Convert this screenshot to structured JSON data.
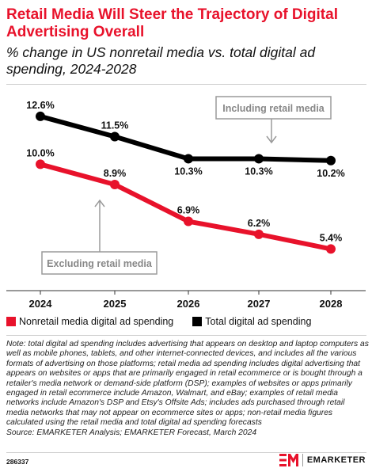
{
  "header": {
    "title": "Retail Media Will Steer the Trajectory of Digital Advertising Overall",
    "subtitle": "% change in US nonretail media vs. total digital ad spending, 2024-2028"
  },
  "chart_data": {
    "type": "line",
    "x": [
      "2024",
      "2025",
      "2026",
      "2027",
      "2028"
    ],
    "ylim": [
      4,
      13.5
    ],
    "grid": false,
    "legend_position": "bottom",
    "series": [
      {
        "name": "Total digital ad spending",
        "color": "#000000",
        "values": [
          12.6,
          11.5,
          10.3,
          10.3,
          10.2
        ],
        "labels": [
          "12.6%",
          "11.5%",
          "10.3%",
          "10.3%",
          "10.2%"
        ]
      },
      {
        "name": "Nonretail media digital ad spending",
        "color": "#e8122b",
        "values": [
          10.0,
          8.9,
          6.9,
          6.2,
          5.4
        ],
        "labels": [
          "10.0%",
          "8.9%",
          "6.9%",
          "6.2%",
          "5.4%"
        ]
      }
    ],
    "annotations": [
      {
        "text": "Including retail media",
        "series": 0,
        "point": 3
      },
      {
        "text": "Excluding retail media",
        "series": 1,
        "point": 1
      }
    ]
  },
  "legend": {
    "items": [
      {
        "label": "Nonretail media digital ad spending",
        "color": "#e8122b"
      },
      {
        "label": "Total digital ad spending",
        "color": "#000000"
      }
    ]
  },
  "notes": {
    "text": "Note: total digital ad spending includes advertising that appears on desktop and laptop computers as well as mobile phones, tablets, and other internet-connected devices, and includes all the various formats of advertising on those platforms; retail media ad spending includes digital advertising that appears on websites or apps that are primarily engaged in retail ecommerce or is bought through a retailer's media network or demand-side platform (DSP); examples of websites or apps primarily engaged in retail ecommerce include Amazon, Walmart, and eBay; examples of retail media networks include Amazon's DSP and Etsy's Offsite Ads; includes ads purchased through retail media networks that may not appear on ecommerce sites or apps; non-retail media figures calculated using the retail media and total digital ad spending forecasts",
    "source": "Source: EMARKETER Analysis; EMARKETER Forecast, March 2024"
  },
  "footer": {
    "chart_id": "286337",
    "brand": "EMARKETER",
    "brand_color": "#e8122b"
  }
}
